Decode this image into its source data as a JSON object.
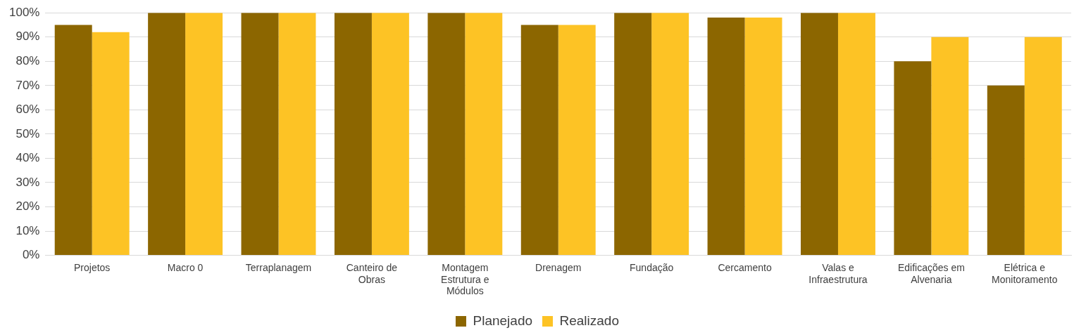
{
  "chart_data": {
    "type": "bar",
    "categories": [
      "Projetos",
      "Macro 0",
      "Terraplanagem",
      "Canteiro de Obras",
      "Montagem Estrutura e Módulos",
      "Drenagem",
      "Fundação",
      "Cercamento",
      "Valas e Infraestrutura",
      "Edificações em Alvenaria",
      "Elétrica e Monitoramento"
    ],
    "series": [
      {
        "name": "Planejado",
        "color": "#8c6600",
        "values": [
          95,
          100,
          100,
          100,
          100,
          95,
          100,
          98,
          100,
          80,
          70
        ]
      },
      {
        "name": "Realizado",
        "color": "#fdc325",
        "values": [
          92,
          100,
          100,
          100,
          100,
          95,
          100,
          98,
          100,
          90,
          90
        ]
      }
    ],
    "ylim": [
      0,
      100
    ],
    "yticks": [
      {
        "value": 0,
        "label": "0%"
      },
      {
        "value": 10,
        "label": "10%"
      },
      {
        "value": 20,
        "label": "20%"
      },
      {
        "value": 30,
        "label": "30%"
      },
      {
        "value": 40,
        "label": "40%"
      },
      {
        "value": 50,
        "label": "50%"
      },
      {
        "value": 60,
        "label": "60%"
      },
      {
        "value": 70,
        "label": "70%"
      },
      {
        "value": 80,
        "label": "80%"
      },
      {
        "value": 90,
        "label": "90%"
      },
      {
        "value": 100,
        "label": "100%"
      }
    ],
    "grid": "y",
    "legend": "bottom"
  }
}
